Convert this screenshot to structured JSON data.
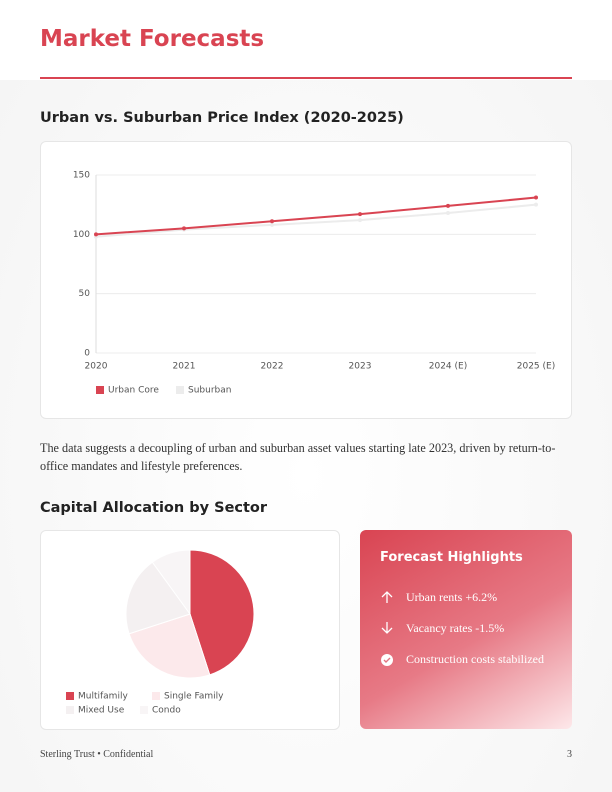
{
  "header": {
    "title": "Market Forecasts"
  },
  "sections": [
    "Urban vs. Suburban Price Index (2020-2025)",
    "Capital Allocation by Sector"
  ],
  "chart_data": [
    {
      "type": "line",
      "categories": [
        "2020",
        "2021",
        "2022",
        "2023",
        "2024 (E)",
        "2025 (E)"
      ],
      "series": [
        {
          "name": "Urban Core",
          "color": "#d94452",
          "values": [
            100,
            105,
            111,
            117,
            124,
            131
          ]
        },
        {
          "name": "Suburban",
          "color": "#ececec",
          "values": [
            98,
            104,
            108,
            112,
            118,
            125
          ]
        }
      ],
      "ylim": [
        0,
        150
      ],
      "yticks": [
        0,
        50,
        100,
        150
      ],
      "grid": true
    },
    {
      "type": "pie",
      "categories": [
        "Multifamily",
        "Single Family",
        "Mixed Use",
        "Condo"
      ],
      "values": [
        45,
        25,
        20,
        10
      ],
      "colors": [
        "#d94452",
        "#fce9eb",
        "#f4f0f1",
        "#f8f5f6"
      ]
    }
  ],
  "paragraph": "The data suggests a decoupling of urban and suburban asset values starting late 2023, driven by return-to-office mandates and lifestyle preferences.",
  "highlights": {
    "title": "Forecast Highlights",
    "items": [
      "Urban rents +6.2%",
      "Vacancy rates -1.5%",
      "Construction costs stabilized"
    ]
  },
  "footer": {
    "left": "Sterling Trust • Confidential",
    "page": "3"
  }
}
